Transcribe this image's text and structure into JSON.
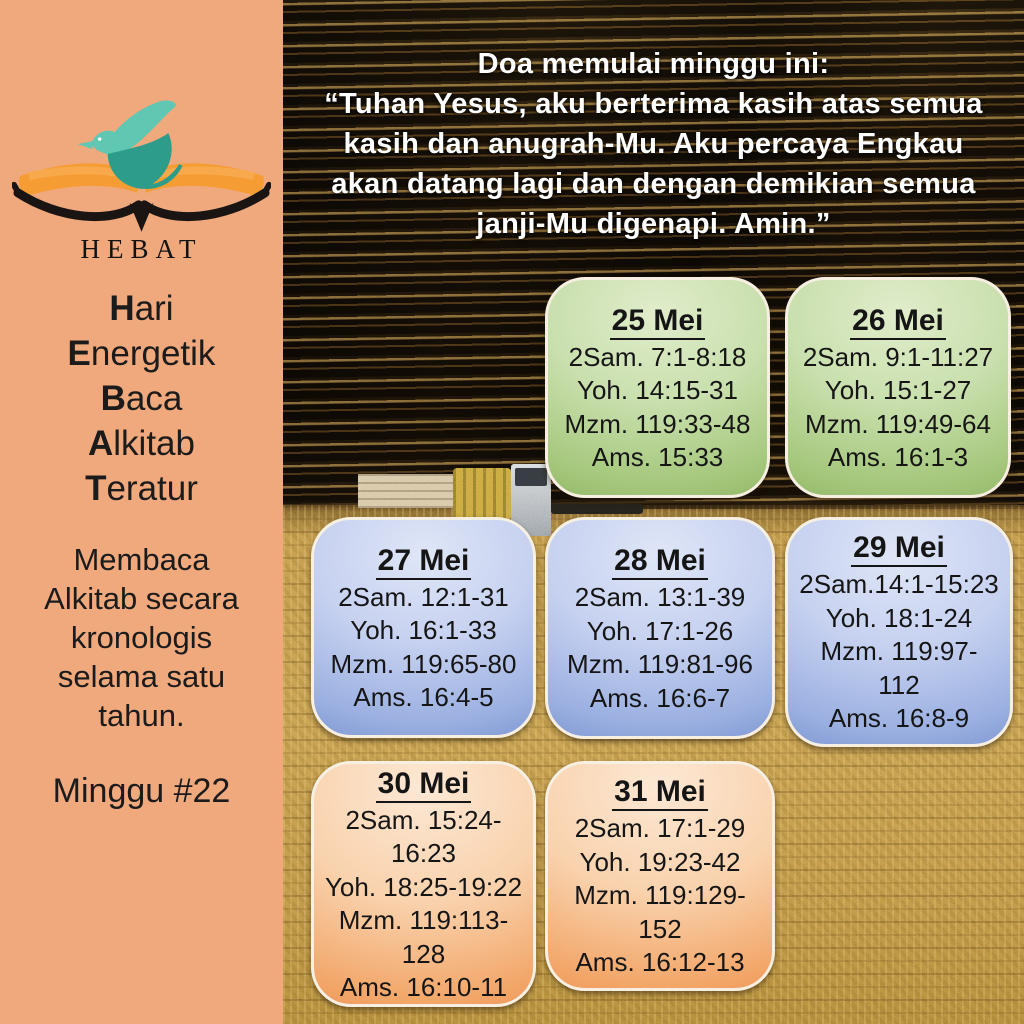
{
  "sidebar": {
    "wordmark": "HEBAT",
    "logo_icons": [
      "bird-icon",
      "open-book-icon"
    ],
    "acronym": [
      {
        "lead": "H",
        "rest": "ari"
      },
      {
        "lead": "E",
        "rest": "nergetik"
      },
      {
        "lead": "B",
        "rest": "aca"
      },
      {
        "lead": "A",
        "rest": "lkitab"
      },
      {
        "lead": "T",
        "rest": "eratur"
      }
    ],
    "description_lines": [
      "Membaca",
      "Alkitab secara",
      "kronologis",
      "selama satu",
      "tahun."
    ],
    "week_label": "Minggu #22"
  },
  "prayer": {
    "intro": "Doa memulai minggu ini:",
    "lines": [
      "“Tuhan Yesus, aku berterima kasih atas semua",
      "kasih dan anugrah-Mu. Aku percaya Engkau",
      "akan datang lagi dan dengan demikian semua",
      "janji-Mu digenapi. Amin.”"
    ]
  },
  "cards": [
    {
      "date": "25 Mei",
      "variant": "green",
      "lines": [
        "2Sam. 7:1-8:18",
        "Yoh. 14:15-31",
        "Mzm. 119:33-48",
        "Ams. 15:33"
      ]
    },
    {
      "date": "26 Mei",
      "variant": "green",
      "lines": [
        "2Sam. 9:1-11:27",
        "Yoh. 15:1-27",
        "Mzm. 119:49-64",
        "Ams. 16:1-3"
      ]
    },
    {
      "date": "27 Mei",
      "variant": "blue",
      "lines": [
        "2Sam. 12:1-31",
        "Yoh. 16:1-33",
        "Mzm. 119:65-80",
        "Ams. 16:4-5"
      ]
    },
    {
      "date": "28 Mei",
      "variant": "blue",
      "lines": [
        "2Sam. 13:1-39",
        "Yoh. 17:1-26",
        "Mzm. 119:81-96",
        "Ams. 16:6-7"
      ]
    },
    {
      "date": "29 Mei",
      "variant": "blue",
      "lines": [
        "2Sam.14:1-15:23",
        "Yoh. 18:1-24",
        "Mzm. 119:97-",
        "112",
        "Ams. 16:8-9"
      ]
    },
    {
      "date": "30 Mei",
      "variant": "orange",
      "lines": [
        "2Sam. 15:24-",
        "16:23",
        "Yoh. 18:25-19:22",
        "Mzm. 119:113-",
        "128",
        "Ams. 16:10-11"
      ]
    },
    {
      "date": "31 Mei",
      "variant": "orange",
      "lines": [
        "2Sam. 17:1-29",
        "Yoh. 19:23-42",
        "Mzm. 119:129-",
        "152",
        "Ams. 16:12-13"
      ]
    }
  ],
  "colors": {
    "sidebar_bg": "#F0A87D",
    "green_card": "#7DA650",
    "blue_card": "#5D7CC4",
    "orange_card": "#E2763A",
    "card_border": "#F6EFE2",
    "bird_teal_light": "#5FC7B2",
    "bird_teal_dark": "#2E9C8B",
    "book_orange": "#F59C33",
    "field_gold": "#C79C4F",
    "text_dark": "#1B1B1B",
    "prayer_text": "#FFFFFF"
  }
}
